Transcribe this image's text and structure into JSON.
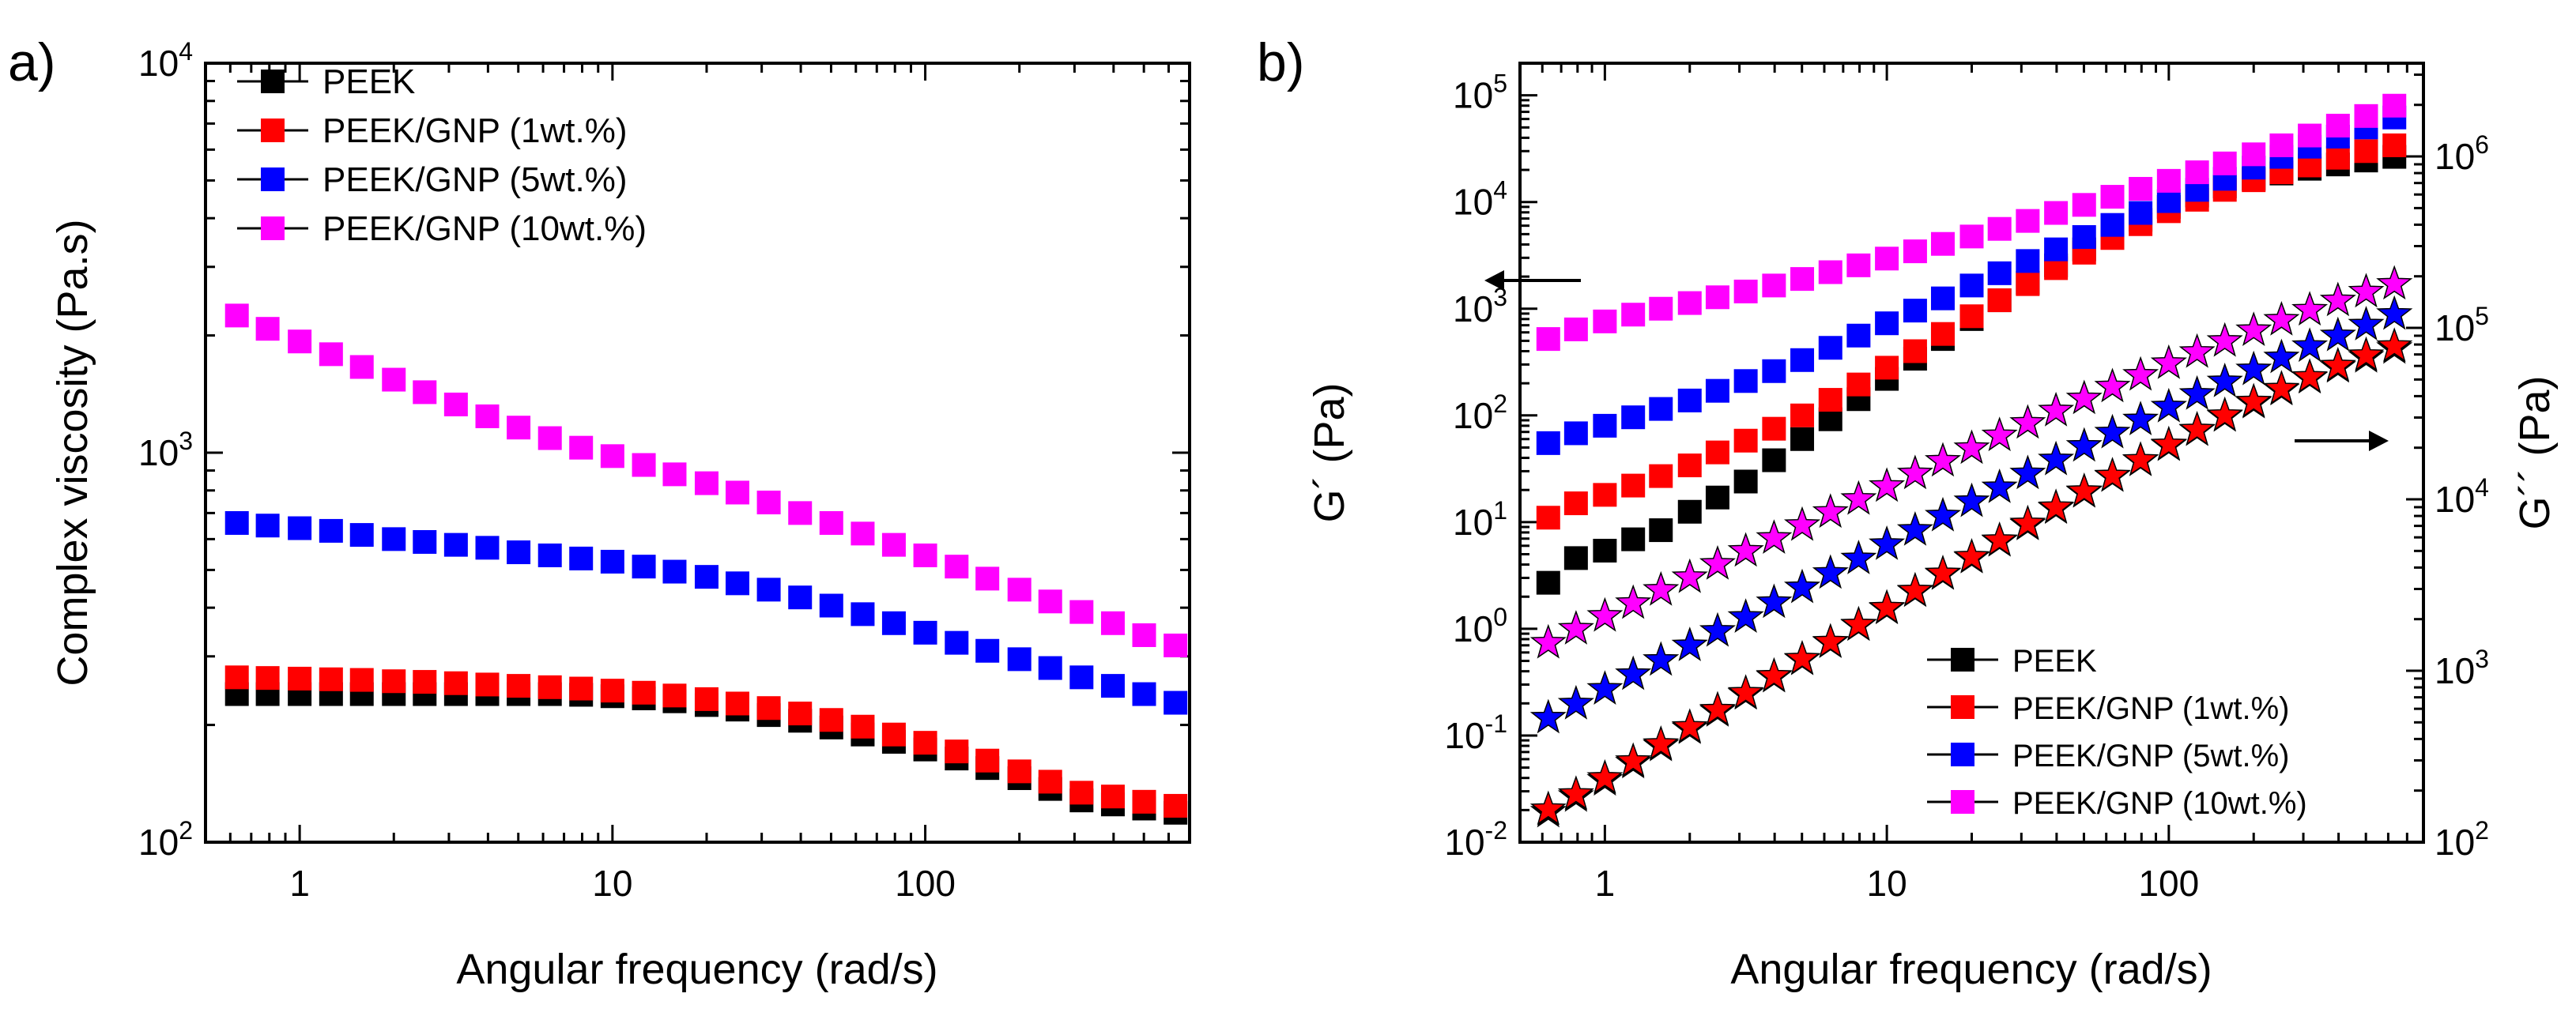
{
  "chart_data": [
    {
      "panel_label": "a)",
      "type": "scatter",
      "xscale": "log",
      "yscale": "log",
      "xlabel": "Angular frequency (rad/s)",
      "ylabel": "Complex viscosity (Pa.s)",
      "xlim": [
        0.5,
        700
      ],
      "ylim": [
        100,
        10000
      ],
      "x_ticks": [
        {
          "v": 1,
          "label": "1"
        },
        {
          "v": 10,
          "label": "10"
        },
        {
          "v": 100,
          "label": "100"
        }
      ],
      "y_ticks": [
        {
          "v": 100,
          "base": "10",
          "exp": "2"
        },
        {
          "v": 1000,
          "base": "10",
          "exp": "3"
        },
        {
          "v": 10000,
          "base": "10",
          "exp": "4"
        }
      ],
      "legend_position": "top-left",
      "x": [
        0.63,
        0.79,
        1.0,
        1.26,
        1.58,
        2.0,
        2.51,
        3.16,
        3.98,
        5.01,
        6.31,
        7.94,
        10.0,
        12.6,
        15.8,
        20.0,
        25.1,
        31.6,
        39.8,
        50.1,
        63.1,
        79.4,
        100,
        126,
        158,
        200,
        251,
        316,
        398,
        501,
        631
      ],
      "series": [
        {
          "name": "PEEK",
          "color": "#000000",
          "marker": "square",
          "values": [
            240,
            240,
            240,
            240,
            240,
            240,
            240,
            240,
            240,
            240,
            240,
            239,
            237,
            234,
            230,
            225,
            219,
            212,
            205,
            197,
            189,
            181,
            173,
            164,
            155,
            146,
            137,
            128,
            125,
            122,
            119
          ]
        },
        {
          "name": "PEEK/GNP (1wt.%)",
          "color": "#ff0000",
          "marker": "square",
          "values": [
            265,
            264,
            263,
            262,
            261,
            259,
            258,
            256,
            254,
            252,
            250,
            248,
            245,
            242,
            238,
            233,
            227,
            221,
            214,
            206,
            198,
            189,
            180,
            171,
            162,
            152,
            143,
            134,
            131,
            127,
            124
          ]
        },
        {
          "name": "PEEK/GNP (5wt.%)",
          "color": "#0000ff",
          "marker": "square",
          "values": [
            660,
            650,
            640,
            630,
            615,
            600,
            590,
            580,
            570,
            555,
            545,
            535,
            525,
            510,
            495,
            480,
            462,
            445,
            425,
            405,
            385,
            365,
            345,
            325,
            310,
            295,
            280,
            265,
            252,
            240,
            228
          ]
        },
        {
          "name": "PEEK/GNP (10wt.%)",
          "color": "#ff00ff",
          "marker": "square",
          "values": [
            2250,
            2080,
            1930,
            1790,
            1660,
            1540,
            1430,
            1330,
            1240,
            1160,
            1090,
            1030,
            980,
            930,
            880,
            835,
            790,
            745,
            700,
            660,
            620,
            580,
            545,
            510,
            475,
            445,
            415,
            390,
            365,
            340,
            320
          ]
        }
      ]
    },
    {
      "panel_label": "b)",
      "type": "scatter",
      "xscale": "log",
      "yscale": "log",
      "xlabel": "Angular frequency (rad/s)",
      "ylabel": "G´ (Pa)",
      "ylabel_right": "G´´ (Pa)",
      "xlim": [
        0.5,
        800
      ],
      "ylim": [
        0.01,
        200000
      ],
      "ylim_right": [
        100,
        3500000
      ],
      "x_ticks": [
        {
          "v": 1,
          "label": "1"
        },
        {
          "v": 10,
          "label": "10"
        },
        {
          "v": 100,
          "label": "100"
        }
      ],
      "y_ticks": [
        {
          "v": 0.01,
          "base": "10",
          "exp": "-2"
        },
        {
          "v": 0.1,
          "base": "10",
          "exp": "-1"
        },
        {
          "v": 1,
          "base": "10",
          "exp": "0"
        },
        {
          "v": 10,
          "base": "10",
          "exp": "1"
        },
        {
          "v": 100,
          "base": "10",
          "exp": "2"
        },
        {
          "v": 1000,
          "base": "10",
          "exp": "3"
        },
        {
          "v": 10000,
          "base": "10",
          "exp": "4"
        },
        {
          "v": 100000,
          "base": "10",
          "exp": "5"
        }
      ],
      "y_ticks_right": [
        {
          "v": 100,
          "base": "10",
          "exp": "2"
        },
        {
          "v": 1000,
          "base": "10",
          "exp": "3"
        },
        {
          "v": 10000,
          "base": "10",
          "exp": "4"
        },
        {
          "v": 100000,
          "base": "10",
          "exp": "5"
        },
        {
          "v": 1000000,
          "base": "10",
          "exp": "6"
        }
      ],
      "legend_position": "bottom-right",
      "annotations": [
        "left arrow: squares read on left axis G´",
        "right arrow: stars read on right axis G´´"
      ],
      "x": [
        0.63,
        0.79,
        1.0,
        1.26,
        1.58,
        2.0,
        2.51,
        3.16,
        3.98,
        5.01,
        6.31,
        7.94,
        10.0,
        12.6,
        15.8,
        20.0,
        25.1,
        31.6,
        39.8,
        50.1,
        63.1,
        79.4,
        100,
        126,
        158,
        200,
        251,
        316,
        398,
        501,
        631
      ],
      "series": [
        {
          "name": "PEEK",
          "color": "#000000",
          "axis": "left",
          "quantity": "G´",
          "marker": "square",
          "values": [
            2.7,
            4.6,
            5.4,
            6.9,
            8.4,
            12.5,
            17,
            24,
            38,
            60,
            92,
            142,
            220,
            340,
            520,
            800,
            1200,
            1750,
            2550,
            3600,
            5000,
            6800,
            9000,
            11500,
            14000,
            16500,
            18500,
            20500,
            22500,
            24500,
            26500
          ]
        },
        {
          "name": "PEEK/GNP (1wt.%)",
          "color": "#ff0000",
          "axis": "left",
          "quantity": "G´",
          "marker": "square",
          "values": [
            11,
            15,
            18,
            22,
            27,
            34,
            45,
            58,
            75,
            100,
            140,
            195,
            280,
            400,
            580,
            850,
            1200,
            1700,
            2400,
            3350,
            4600,
            6200,
            8200,
            10500,
            13000,
            16000,
            19000,
            22000,
            26000,
            30000,
            34000
          ]
        },
        {
          "name": "PEEK/GNP (5wt.%)",
          "color": "#0000ff",
          "axis": "left",
          "quantity": "G´",
          "marker": "square",
          "values": [
            55,
            68,
            80,
            96,
            115,
            138,
            170,
            210,
            260,
            330,
            430,
            560,
            730,
            960,
            1250,
            1650,
            2150,
            2800,
            3600,
            4700,
            6100,
            7900,
            10200,
            13000,
            16500,
            21000,
            26500,
            33000,
            41000,
            50000,
            62000
          ]
        },
        {
          "name": "PEEK/GNP (10wt.%)",
          "color": "#ff00ff",
          "axis": "left",
          "quantity": "G´",
          "marker": "square",
          "values": [
            520,
            640,
            760,
            880,
            1000,
            1130,
            1280,
            1450,
            1650,
            1900,
            2200,
            2550,
            2950,
            3450,
            4050,
            4750,
            5600,
            6650,
            7900,
            9400,
            11200,
            13300,
            15800,
            19000,
            23000,
            28000,
            34000,
            42000,
            52000,
            64000,
            80000
          ]
        },
        {
          "name": "PEEK",
          "color": "#000000",
          "axis": "right",
          "quantity": "G´´",
          "marker": "star",
          "values": [
            150,
            185,
            230,
            290,
            365,
            460,
            580,
            730,
            920,
            1160,
            1460,
            1840,
            2300,
            2900,
            3650,
            4550,
            5700,
            7100,
            8850,
            11000,
            13600,
            16800,
            20600,
            25200,
            30500,
            36500,
            43500,
            51000,
            59000,
            67500,
            76000
          ]
        },
        {
          "name": "PEEK/GNP (1wt.%)",
          "color": "#ff0000",
          "axis": "right",
          "quantity": "G´´",
          "marker": "star",
          "values": [
            155,
            190,
            236,
            296,
            372,
            468,
            590,
            740,
            930,
            1170,
            1470,
            1850,
            2320,
            2920,
            3680,
            4600,
            5750,
            7200,
            8950,
            11100,
            13700,
            16900,
            20800,
            25400,
            30800,
            37000,
            44000,
            51500,
            60000,
            69000,
            78000
          ]
        },
        {
          "name": "PEEK/GNP (5wt.%)",
          "color": "#0000ff",
          "axis": "right",
          "quantity": "G´´",
          "marker": "star",
          "values": [
            530,
            640,
            780,
            950,
            1150,
            1400,
            1700,
            2050,
            2500,
            3050,
            3700,
            4500,
            5450,
            6600,
            8000,
            9700,
            11700,
            14100,
            17000,
            20400,
            24400,
            29100,
            34600,
            41000,
            48500,
            57000,
            67000,
            78000,
            90000,
            104000,
            120000
          ]
        },
        {
          "name": "PEEK/GNP (10wt.%)",
          "color": "#ff00ff",
          "axis": "right",
          "quantity": "G´´",
          "marker": "star",
          "values": [
            1450,
            1750,
            2080,
            2470,
            2950,
            3500,
            4180,
            4980,
            5920,
            7050,
            8400,
            10000,
            11900,
            14100,
            16700,
            19800,
            23500,
            27800,
            32800,
            38600,
            45300,
            53000,
            62000,
            72000,
            83500,
            96500,
            111000,
            127000,
            144000,
            162000,
            180000
          ]
        }
      ]
    }
  ]
}
